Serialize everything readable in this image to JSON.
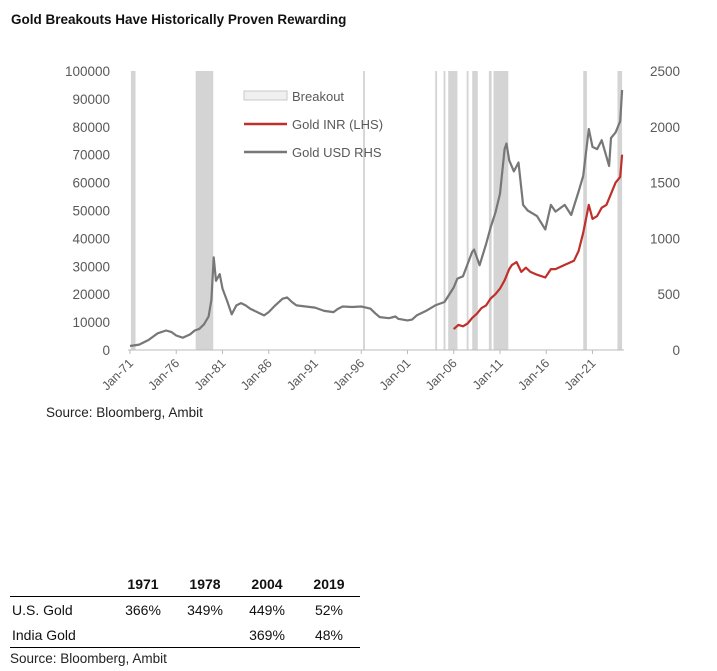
{
  "page": {
    "title": "Gold Breakouts Have Historically Proven Rewarding",
    "chart_source": "Source: Bloomberg, Ambit",
    "table_source": "Source: Bloomberg, Ambit"
  },
  "chart_data": {
    "type": "line",
    "title": "Gold Breakouts Have Historically Proven Rewarding",
    "x_tick_labels": [
      "Jan-71",
      "Jan-76",
      "Jan-81",
      "Jan-86",
      "Jan-91",
      "Jan-96",
      "Jan-01",
      "Jan-06",
      "Jan-11",
      "Jan-16",
      "Jan-21"
    ],
    "x_range": [
      1971.0,
      2024.3
    ],
    "y_left": {
      "range": [
        0,
        100000
      ],
      "ticks": [
        "0",
        "10000",
        "20000",
        "30000",
        "40000",
        "50000",
        "60000",
        "70000",
        "80000",
        "90000",
        "100000"
      ]
    },
    "y_right": {
      "range": [
        0,
        2500
      ],
      "ticks": [
        "0",
        "500",
        "1000",
        "1500",
        "2000",
        "2500"
      ]
    },
    "legend": {
      "position": "top-center",
      "entries": [
        "Breakout",
        "Gold INR (LHS)",
        "Gold USD RHS"
      ]
    },
    "colors": {
      "inr": "#c0302b",
      "usd": "#777777",
      "breakout": "#d4d4d4"
    },
    "breakout_periods": [
      [
        1971.1,
        1971.6
      ],
      [
        1978.1,
        1980.0
      ],
      [
        1996.2,
        1996.4
      ],
      [
        2004.0,
        2004.2
      ],
      [
        2004.9,
        2005.1
      ],
      [
        2005.4,
        2006.4
      ],
      [
        2007.4,
        2007.6
      ],
      [
        2008.0,
        2008.6
      ],
      [
        2009.8,
        2010.1
      ],
      [
        2010.3,
        2011.9
      ],
      [
        2020.0,
        2020.4
      ],
      [
        2023.7,
        2024.2
      ]
    ],
    "series": [
      {
        "name": "Gold USD RHS",
        "axis": "right",
        "x": [
          1971.0,
          1972.0,
          1973.0,
          1973.5,
          1974.0,
          1974.9,
          1975.5,
          1976.0,
          1976.7,
          1977.5,
          1978.0,
          1978.5,
          1979.0,
          1979.5,
          1979.8,
          1980.05,
          1980.3,
          1980.7,
          1981.0,
          1981.5,
          1982.0,
          1982.5,
          1983.0,
          1983.5,
          1984.0,
          1985.0,
          1985.5,
          1986.0,
          1986.7,
          1987.5,
          1988.0,
          1988.5,
          1989.0,
          1990.0,
          1991.0,
          1992.0,
          1993.0,
          1993.5,
          1994.0,
          1995.0,
          1996.0,
          1996.5,
          1997.0,
          1997.5,
          1998.0,
          1999.0,
          1999.7,
          2000.0,
          2001.0,
          2001.5,
          2002.0,
          2003.0,
          2004.0,
          2005.0,
          2006.0,
          2006.4,
          2007.0,
          2008.0,
          2008.2,
          2008.8,
          2009.5,
          2010.0,
          2010.5,
          2011.0,
          2011.5,
          2011.7,
          2012.0,
          2012.5,
          2013.0,
          2013.5,
          2014.0,
          2015.0,
          2015.9,
          2016.5,
          2017.0,
          2018.0,
          2018.7,
          2019.5,
          2020.0,
          2020.6,
          2021.0,
          2021.5,
          2022.0,
          2022.8,
          2023.0,
          2023.5,
          2024.0,
          2024.2
        ],
        "values": [
          36,
          48,
          90,
          120,
          150,
          175,
          160,
          130,
          110,
          140,
          175,
          190,
          230,
          300,
          450,
          830,
          620,
          680,
          550,
          440,
          320,
          400,
          420,
          400,
          370,
          330,
          310,
          340,
          400,
          460,
          470,
          430,
          400,
          390,
          380,
          350,
          340,
          370,
          390,
          385,
          390,
          380,
          370,
          330,
          295,
          285,
          300,
          280,
          265,
          272,
          310,
          350,
          400,
          430,
          560,
          640,
          660,
          880,
          900,
          760,
          950,
          1100,
          1230,
          1400,
          1800,
          1850,
          1700,
          1600,
          1680,
          1300,
          1250,
          1200,
          1080,
          1300,
          1240,
          1300,
          1210,
          1420,
          1560,
          1980,
          1820,
          1800,
          1880,
          1650,
          1900,
          1950,
          2050,
          2330
        ]
      },
      {
        "name": "Gold INR (LHS)",
        "axis": "left",
        "x": [
          2006.0,
          2006.5,
          2007.0,
          2007.5,
          2008.0,
          2008.5,
          2009.0,
          2009.5,
          2010.0,
          2010.5,
          2011.0,
          2011.5,
          2012.0,
          2012.3,
          2012.8,
          2013.3,
          2013.8,
          2014.3,
          2015.0,
          2015.9,
          2016.5,
          2017.0,
          2018.0,
          2019.0,
          2019.5,
          2020.0,
          2020.6,
          2021.0,
          2021.5,
          2022.0,
          2022.5,
          2023.0,
          2023.5,
          2024.0,
          2024.2
        ],
        "values": [
          7500,
          9000,
          8500,
          9500,
          11500,
          13000,
          15000,
          16000,
          18500,
          20000,
          22000,
          25000,
          29000,
          30500,
          31500,
          28000,
          29500,
          28000,
          27000,
          26000,
          29000,
          29000,
          30500,
          32000,
          35500,
          42000,
          52000,
          47000,
          48000,
          51000,
          52000,
          56000,
          60000,
          62000,
          70000
        ]
      }
    ]
  },
  "returns_table": {
    "corner": "",
    "years": [
      "1971",
      "1978",
      "2004",
      "2019"
    ],
    "rows": [
      {
        "label": "U.S. Gold",
        "values": [
          "366%",
          "349%",
          "449%",
          "52%"
        ]
      },
      {
        "label": "India Gold",
        "values": [
          "",
          "",
          "369%",
          "48%"
        ]
      }
    ]
  }
}
